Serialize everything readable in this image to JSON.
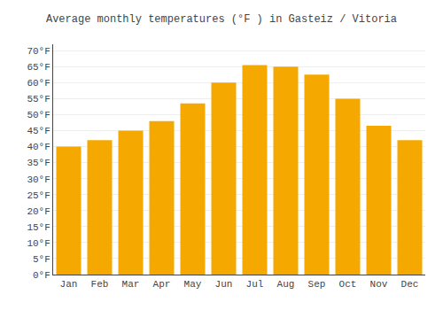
{
  "chart_data": {
    "type": "bar",
    "title": "Average monthly temperatures (°F ) in Gasteiz / Vitoria",
    "categories": [
      "Jan",
      "Feb",
      "Mar",
      "Apr",
      "May",
      "Jun",
      "Jul",
      "Aug",
      "Sep",
      "Oct",
      "Nov",
      "Dec"
    ],
    "values": [
      40,
      42,
      45,
      48,
      53.5,
      60,
      65.5,
      65,
      62.5,
      55,
      46.5,
      42
    ],
    "color": "#F5A800",
    "ylim": [
      0,
      72
    ],
    "yticks": [
      {
        "value": 0,
        "label": "0°F"
      },
      {
        "value": 5,
        "label": "5°F"
      },
      {
        "value": 10,
        "label": "10°F"
      },
      {
        "value": 15,
        "label": "15°F"
      },
      {
        "value": 20,
        "label": "20°F"
      },
      {
        "value": 25,
        "label": "25°F"
      },
      {
        "value": 30,
        "label": "30°F"
      },
      {
        "value": 35,
        "label": "35°F"
      },
      {
        "value": 40,
        "label": "40°F"
      },
      {
        "value": 45,
        "label": "45°F"
      },
      {
        "value": 50,
        "label": "50°F"
      },
      {
        "value": 55,
        "label": "55°F"
      },
      {
        "value": 60,
        "label": "60°F"
      },
      {
        "value": 65,
        "label": "65°F"
      },
      {
        "value": 70,
        "label": "70°F"
      }
    ],
    "grid": true
  }
}
